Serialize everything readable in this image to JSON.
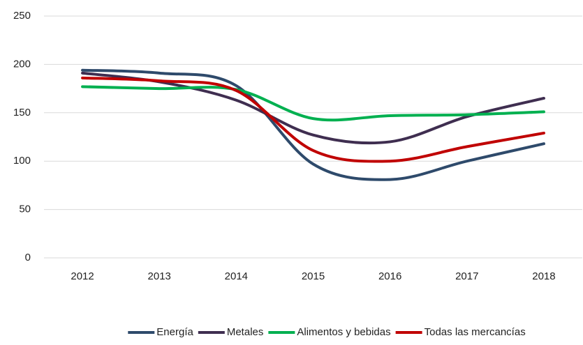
{
  "chart_data": {
    "type": "line",
    "categories": [
      "2012",
      "2013",
      "2014",
      "2015",
      "2016",
      "2017",
      "2018"
    ],
    "series": [
      {
        "name": "Energía",
        "color": "#2e4a6b",
        "values": [
          194,
          191,
          178,
          97,
          81,
          100,
          118
        ]
      },
      {
        "name": "Metales",
        "color": "#3f2e50",
        "values": [
          191,
          182,
          163,
          127,
          120,
          146,
          165
        ]
      },
      {
        "name": "Alimentos y bebidas",
        "color": "#00b050",
        "values": [
          177,
          175,
          174,
          144,
          147,
          148,
          151
        ]
      },
      {
        "name": "Todas las mercancías",
        "color": "#c00000",
        "values": [
          186,
          183,
          173,
          111,
          100,
          115,
          129
        ]
      }
    ],
    "ylim": [
      0,
      250
    ],
    "yticks": [
      0,
      50,
      100,
      150,
      200,
      250
    ],
    "grid": true,
    "legend": "bottom"
  }
}
